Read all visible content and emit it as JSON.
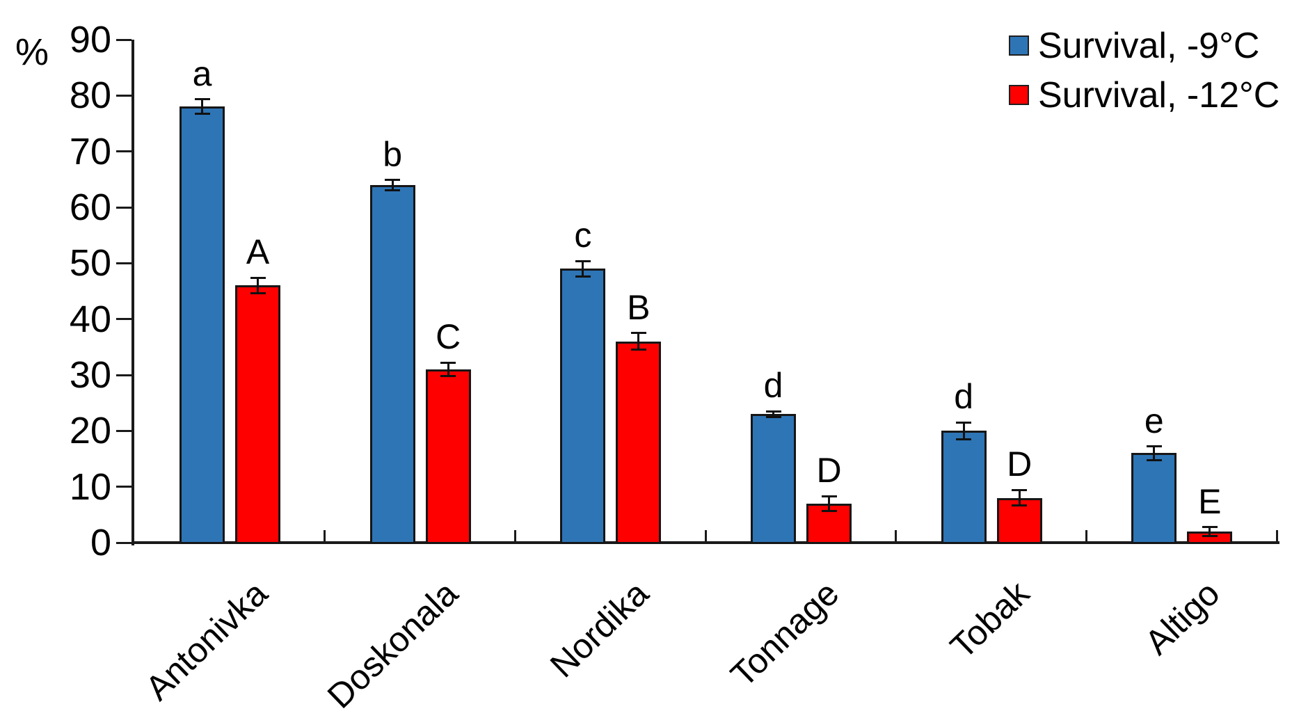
{
  "chart_data": {
    "type": "bar",
    "title": "",
    "ylabel": "%",
    "xlabel": "",
    "ylim": [
      0,
      90
    ],
    "ytick_step": 10,
    "yticks": [
      0,
      10,
      20,
      30,
      40,
      50,
      60,
      70,
      80,
      90
    ],
    "grid": false,
    "error_bars": true,
    "legend_position": "top-right",
    "categories": [
      "Antonivka",
      "Doskonala",
      "Nordika",
      "Tonnage",
      "Tobak",
      "Altigo"
    ],
    "series": [
      {
        "name": "Survival, -9°C",
        "color": "#2E75B6",
        "values": [
          78,
          64,
          49,
          23,
          20,
          16
        ],
        "errors": [
          1.3,
          0.9,
          1.4,
          0.5,
          1.5,
          1.2
        ],
        "letters": [
          "a",
          "b",
          "c",
          "d",
          "d",
          "e"
        ]
      },
      {
        "name": "Survival, -12°C",
        "color": "#FE0000",
        "values": [
          46,
          31,
          36,
          7,
          8,
          2
        ],
        "errors": [
          1.4,
          1.2,
          1.5,
          1.3,
          1.4,
          0.8
        ],
        "letters": [
          "A",
          "C",
          "B",
          "D",
          "D",
          "E"
        ]
      }
    ]
  }
}
